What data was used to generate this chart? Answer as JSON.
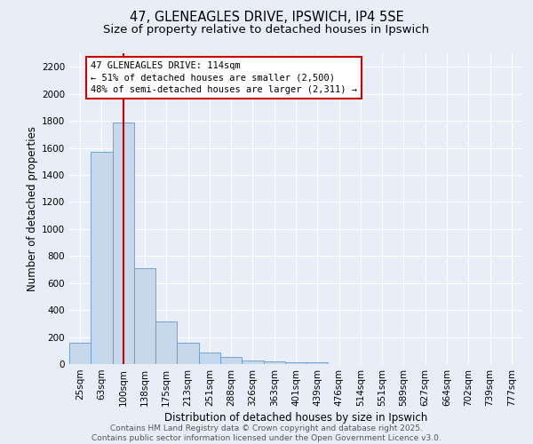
{
  "title_line1": "47, GLENEAGLES DRIVE, IPSWICH, IP4 5SE",
  "title_line2": "Size of property relative to detached houses in Ipswich",
  "xlabel": "Distribution of detached houses by size in Ipswich",
  "ylabel": "Number of detached properties",
  "categories": [
    "25sqm",
    "63sqm",
    "100sqm",
    "138sqm",
    "175sqm",
    "213sqm",
    "251sqm",
    "288sqm",
    "326sqm",
    "363sqm",
    "401sqm",
    "439sqm",
    "476sqm",
    "514sqm",
    "551sqm",
    "589sqm",
    "627sqm",
    "664sqm",
    "702sqm",
    "739sqm",
    "777sqm"
  ],
  "values": [
    160,
    1570,
    1790,
    710,
    315,
    155,
    88,
    52,
    28,
    18,
    10,
    14,
    0,
    0,
    0,
    0,
    0,
    0,
    0,
    0,
    0
  ],
  "bar_color": "#c5d8ec",
  "bar_edge_color": "#6699cc",
  "red_line_index": 2,
  "annotation_line1": "47 GLENEAGLES DRIVE: 114sqm",
  "annotation_line2": "← 51% of detached houses are smaller (2,500)",
  "annotation_line3": "48% of semi-detached houses are larger (2,311) →",
  "annotation_box_color": "#ffffff",
  "annotation_box_edge": "#cc0000",
  "red_line_color": "#cc0000",
  "ylim": [
    0,
    2300
  ],
  "yticks": [
    0,
    200,
    400,
    600,
    800,
    1000,
    1200,
    1400,
    1600,
    1800,
    2000,
    2200
  ],
  "background_color": "#e8eef8",
  "plot_background": "#e8eef8",
  "grid_color": "#ffffff",
  "footer_line1": "Contains HM Land Registry data © Crown copyright and database right 2025.",
  "footer_line2": "Contains public sector information licensed under the Open Government Licence v3.0.",
  "title_fontsize": 10.5,
  "subtitle_fontsize": 9.5,
  "axis_label_fontsize": 8.5,
  "tick_fontsize": 7.5,
  "annotation_fontsize": 7.5,
  "footer_fontsize": 6.5
}
